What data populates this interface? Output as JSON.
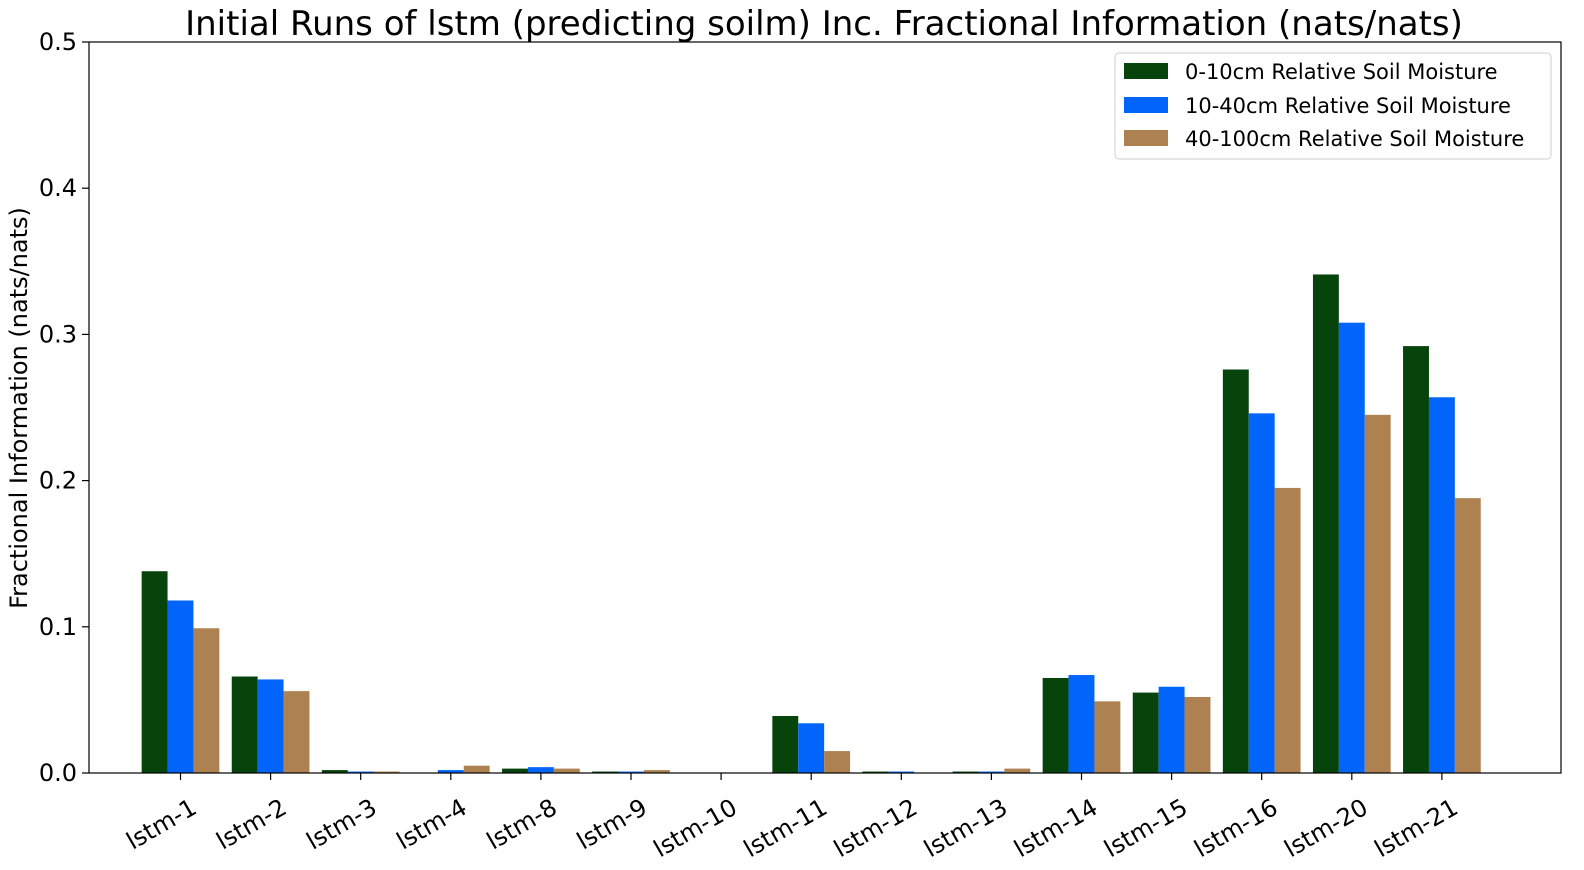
{
  "chart_data": {
    "type": "bar",
    "title": "Initial Runs of lstm (predicting soilm) Inc. Fractional Information (nats/nats)",
    "xlabel": "",
    "ylabel": "Fractional Information (nats/nats)",
    "ylim": [
      0,
      0.5
    ],
    "yticks": [
      "0.0",
      "0.1",
      "0.2",
      "0.3",
      "0.4",
      "0.5"
    ],
    "grid": false,
    "legend_position": "top-right",
    "categories": [
      "lstm-1",
      "lstm-2",
      "lstm-3",
      "lstm-4",
      "lstm-8",
      "lstm-9",
      "lstm-10",
      "lstm-11",
      "lstm-12",
      "lstm-13",
      "lstm-14",
      "lstm-15",
      "lstm-16",
      "lstm-20",
      "lstm-21"
    ],
    "series": [
      {
        "name": "0-10cm Relative Soil Moisture",
        "color": "#06440c",
        "values": [
          0.138,
          0.066,
          0.002,
          0.0,
          0.003,
          0.001,
          0.0,
          0.039,
          0.001,
          0.001,
          0.065,
          0.055,
          0.276,
          0.341,
          0.292
        ]
      },
      {
        "name": "10-40cm Relative Soil Moisture",
        "color": "#0165fc",
        "values": [
          0.118,
          0.064,
          0.001,
          0.002,
          0.004,
          0.001,
          0.0,
          0.034,
          0.001,
          0.001,
          0.067,
          0.059,
          0.246,
          0.308,
          0.257
        ]
      },
      {
        "name": "40-100cm Relative Soil Moisture",
        "color": "#ad8150",
        "values": [
          0.099,
          0.056,
          0.001,
          0.005,
          0.003,
          0.002,
          0.0,
          0.015,
          0.0,
          0.003,
          0.049,
          0.052,
          0.195,
          0.245,
          0.188
        ]
      }
    ]
  }
}
